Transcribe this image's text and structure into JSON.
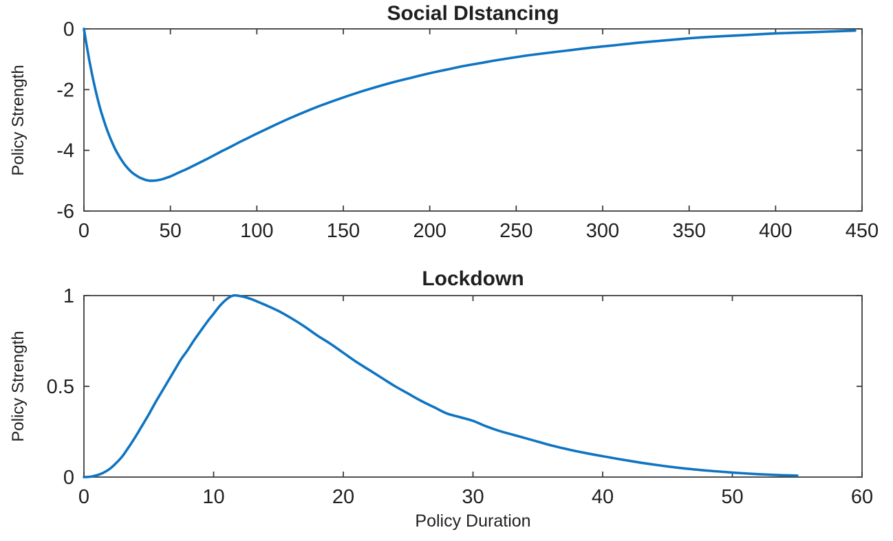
{
  "figure": {
    "background": "#ffffff",
    "axis_color": "#3c3c3c",
    "text_color": "#1f1f1f",
    "line_color": "#0E74C2"
  },
  "chart_data": [
    {
      "type": "line",
      "title": "Social DIstancing",
      "xlabel": "",
      "ylabel": "Policy Strength",
      "xlim": [
        0,
        450
      ],
      "ylim": [
        -6,
        0
      ],
      "xticks": [
        0,
        50,
        100,
        150,
        200,
        250,
        300,
        350,
        400,
        450
      ],
      "xtick_labels": [
        "0",
        "50",
        "100",
        "150",
        "200",
        "250",
        "300",
        "350",
        "400",
        "450"
      ],
      "yticks": [
        -6,
        -4,
        -2,
        0
      ],
      "ytick_labels": [
        "-6",
        "-4",
        "-2",
        "0"
      ],
      "grid": false,
      "legend": null,
      "line_color": "#0E74C2",
      "series": [
        {
          "name": "social-distancing",
          "x": [
            0,
            1,
            2,
            3,
            4,
            5,
            6,
            7,
            8,
            9,
            10,
            12,
            14,
            16,
            18,
            20,
            22,
            24,
            26,
            28,
            30,
            32,
            34,
            36,
            38,
            40,
            42,
            44,
            46,
            48,
            50,
            55,
            60,
            65,
            70,
            75,
            80,
            85,
            90,
            95,
            100,
            110,
            120,
            130,
            140,
            150,
            160,
            170,
            180,
            190,
            200,
            210,
            220,
            230,
            240,
            250,
            260,
            270,
            280,
            290,
            300,
            310,
            320,
            330,
            340,
            350,
            360,
            370,
            380,
            390,
            400,
            410,
            420,
            430,
            440,
            446
          ],
          "y": [
            0,
            -0.35,
            -0.68,
            -1.0,
            -1.3,
            -1.58,
            -1.84,
            -2.09,
            -2.32,
            -2.54,
            -2.74,
            -3.1,
            -3.42,
            -3.7,
            -3.95,
            -4.16,
            -4.34,
            -4.5,
            -4.63,
            -4.74,
            -4.82,
            -4.89,
            -4.94,
            -4.98,
            -5.0,
            -5.0,
            -4.99,
            -4.97,
            -4.94,
            -4.9,
            -4.86,
            -4.73,
            -4.6,
            -4.46,
            -4.32,
            -4.17,
            -4.02,
            -3.88,
            -3.73,
            -3.59,
            -3.45,
            -3.18,
            -2.92,
            -2.68,
            -2.46,
            -2.26,
            -2.07,
            -1.9,
            -1.74,
            -1.6,
            -1.46,
            -1.34,
            -1.22,
            -1.12,
            -1.02,
            -0.93,
            -0.85,
            -0.78,
            -0.71,
            -0.64,
            -0.58,
            -0.52,
            -0.46,
            -0.41,
            -0.36,
            -0.31,
            -0.27,
            -0.24,
            -0.21,
            -0.18,
            -0.15,
            -0.13,
            -0.11,
            -0.09,
            -0.07,
            -0.06
          ]
        }
      ]
    },
    {
      "type": "line",
      "title": "Lockdown",
      "xlabel": "Policy Duration",
      "ylabel": "Policy Strength",
      "xlim": [
        0,
        60
      ],
      "ylim": [
        0,
        1
      ],
      "xticks": [
        0,
        10,
        20,
        30,
        40,
        50,
        60
      ],
      "xtick_labels": [
        "0",
        "10",
        "20",
        "30",
        "40",
        "50",
        "60"
      ],
      "yticks": [
        0,
        0.5,
        1
      ],
      "ytick_labels": [
        "0",
        "0.5",
        "1"
      ],
      "grid": false,
      "legend": null,
      "line_color": "#0E74C2",
      "series": [
        {
          "name": "lockdown",
          "x": [
            0,
            0.5,
            1,
            1.5,
            2,
            2.5,
            3,
            3.5,
            4,
            4.5,
            5,
            5.5,
            6,
            6.5,
            7,
            7.5,
            8,
            8.5,
            9,
            9.5,
            10,
            10.5,
            11,
            11.5,
            12,
            12.5,
            13,
            14,
            15,
            16,
            17,
            18,
            19,
            20,
            21,
            22,
            23,
            24,
            25,
            26,
            27,
            28,
            29,
            30,
            31,
            32,
            33,
            34,
            35,
            36,
            37,
            38,
            39,
            40,
            42,
            44,
            46,
            48,
            50,
            52,
            54,
            55
          ],
          "y": [
            0,
            0.002,
            0.01,
            0.024,
            0.046,
            0.078,
            0.118,
            0.17,
            0.225,
            0.285,
            0.345,
            0.41,
            0.47,
            0.53,
            0.59,
            0.65,
            0.7,
            0.755,
            0.805,
            0.855,
            0.9,
            0.945,
            0.98,
            1.0,
            0.998,
            0.99,
            0.978,
            0.948,
            0.915,
            0.875,
            0.83,
            0.78,
            0.735,
            0.685,
            0.635,
            0.59,
            0.545,
            0.5,
            0.46,
            0.42,
            0.385,
            0.35,
            0.33,
            0.31,
            0.28,
            0.255,
            0.235,
            0.215,
            0.195,
            0.175,
            0.158,
            0.142,
            0.128,
            0.115,
            0.09,
            0.068,
            0.05,
            0.036,
            0.025,
            0.016,
            0.01,
            0.008
          ]
        }
      ]
    }
  ]
}
